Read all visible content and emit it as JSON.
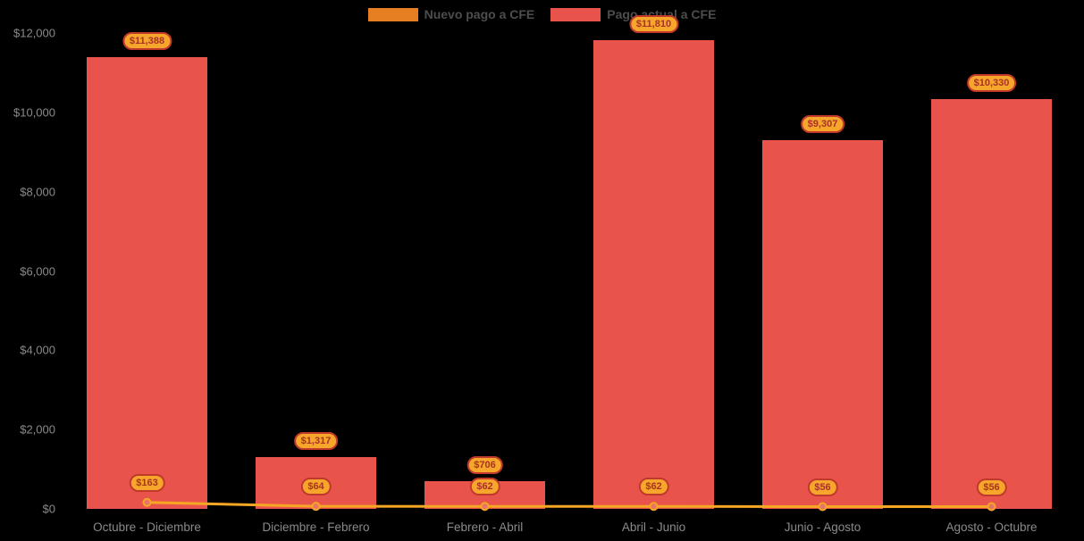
{
  "colors": {
    "background": "#000000",
    "bar": "#E8544C",
    "line": "#F5A623",
    "point_fill": "#E8736B",
    "badge_bg": "#F5A62B",
    "badge_border": "#C0392B",
    "badge_text": "#A93226",
    "axis_text": "#8A8A8A",
    "legend_text": "#4D4D4D"
  },
  "legend": [
    {
      "label": "Nuevo pago a CFE",
      "color": "#E67E22"
    },
    {
      "label": "Pago actual a CFE",
      "color": "#E8544C"
    }
  ],
  "chart_data": {
    "type": "bar",
    "categories": [
      "Octubre - Diciembre",
      "Diciembre - Febrero",
      "Febrero - Abril",
      "Abril - Junio",
      "Junio - Agosto",
      "Agosto - Octubre"
    ],
    "series": [
      {
        "name": "Nuevo pago a CFE",
        "type": "line",
        "values": [
          163,
          64,
          62,
          62,
          56,
          56
        ],
        "labels": [
          "$163",
          "$64",
          "$62",
          "$62",
          "$56",
          "$56"
        ]
      },
      {
        "name": "Pago actual a CFE",
        "type": "bar",
        "values": [
          11388,
          1317,
          706,
          11810,
          9307,
          10330
        ],
        "labels": [
          "$11,388",
          "$1,317",
          "$706",
          "$11,810",
          "$9,307",
          "$10,330"
        ]
      }
    ],
    "y_ticks": [
      "$0",
      "$2,000",
      "$4,000",
      "$6,000",
      "$8,000",
      "$10,000",
      "$12,000"
    ],
    "ylim": [
      0,
      12000
    ],
    "xlabel": "",
    "ylabel": "",
    "title": "",
    "grid": false,
    "legend_position": "top"
  }
}
